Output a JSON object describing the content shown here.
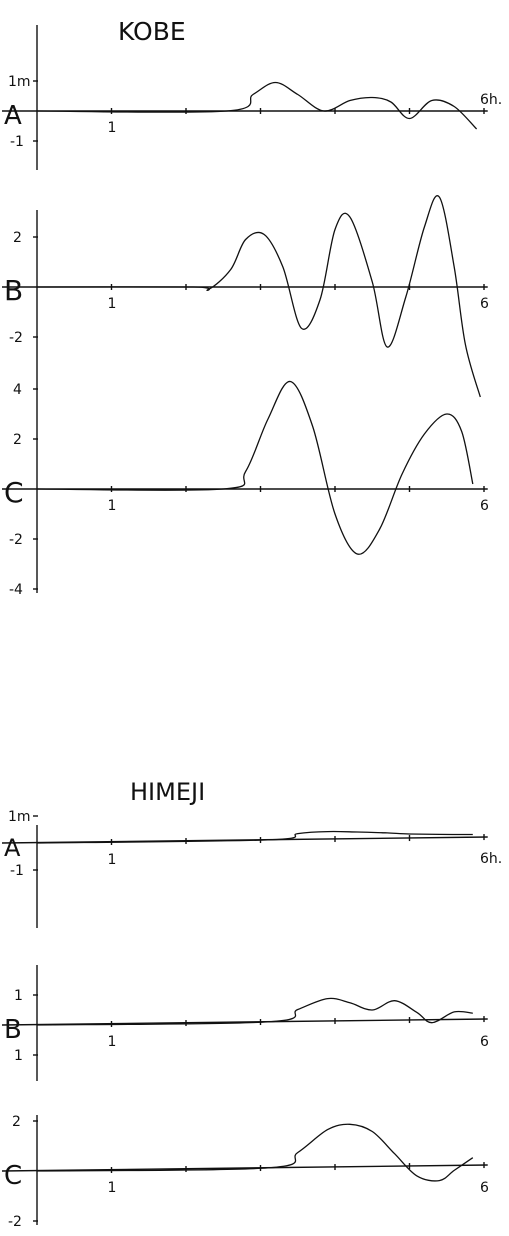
{
  "chart_data": [
    {
      "type": "line",
      "site": "KOBE",
      "panel": "A",
      "x_ticks": [
        "1"
      ],
      "x_end_label": "6h.",
      "y_tick_labels": [
        "1m",
        "-1"
      ],
      "ylim": [
        -1.8,
        2.0
      ],
      "series": [
        {
          "x": [
            0,
            2.55,
            2.9,
            3.2,
            3.5,
            3.85,
            4.2,
            4.5,
            4.75,
            5.0,
            5.3,
            5.6,
            5.9
          ],
          "y": [
            0,
            0,
            0.55,
            0.95,
            0.55,
            0,
            0.35,
            0.45,
            0.3,
            -0.25,
            0.35,
            0.15,
            -0.6
          ]
        }
      ]
    },
    {
      "type": "line",
      "site": "KOBE",
      "panel": "B",
      "x_ticks": [
        "1",
        "6"
      ],
      "y_tick_labels": [
        "2",
        "-2"
      ],
      "ylim": [
        -3.5,
        3.2
      ],
      "series": [
        {
          "x": [
            0,
            2.1,
            2.3,
            2.6,
            2.8,
            3.05,
            3.3,
            3.55,
            3.8,
            4.0,
            4.2,
            4.5,
            4.7,
            4.95,
            5.2,
            5.4,
            5.6,
            5.75,
            5.95
          ],
          "y": [
            0,
            0,
            -0.1,
            0.7,
            1.9,
            2.1,
            0.8,
            -1.65,
            -0.5,
            2.3,
            2.8,
            0.2,
            -2.4,
            -0.4,
            2.4,
            3.6,
            0.8,
            -2.3,
            -4.4
          ]
        }
      ]
    },
    {
      "type": "line",
      "site": "KOBE",
      "panel": "C",
      "x_ticks": [
        "1",
        "6"
      ],
      "y_tick_labels": [
        "4",
        "2",
        "-2",
        "-4"
      ],
      "ylim": [
        -4.2,
        4.6
      ],
      "series": [
        {
          "x": [
            0,
            2.5,
            2.8,
            3.1,
            3.4,
            3.7,
            4.0,
            4.3,
            4.6,
            4.9,
            5.2,
            5.5,
            5.7,
            5.85
          ],
          "y": [
            0,
            0,
            0.7,
            2.8,
            4.3,
            2.5,
            -1.0,
            -2.6,
            -1.6,
            0.6,
            2.2,
            3.0,
            2.3,
            0.2
          ]
        }
      ]
    },
    {
      "type": "line",
      "site": "HIMEJI",
      "panel": "A",
      "x_ticks": [
        "1"
      ],
      "x_end_label": "6h.",
      "y_tick_labels": [
        "1m",
        "-1"
      ],
      "ylim": [
        -2.3,
        2.0
      ],
      "series": [
        {
          "x": [
            0,
            3.1,
            3.5,
            3.9,
            4.3,
            4.7,
            5.0,
            5.4,
            5.85
          ],
          "y": [
            0,
            0,
            0.22,
            0.28,
            0.25,
            0.2,
            0.15,
            0.12,
            0.1
          ]
        }
      ]
    },
    {
      "type": "line",
      "site": "HIMEJI",
      "panel": "B",
      "x_ticks": [
        "1",
        "6"
      ],
      "y_tick_labels": [
        "1",
        "1"
      ],
      "ylim": [
        -2.3,
        1.9
      ],
      "series": [
        {
          "x": [
            0,
            3.1,
            3.5,
            3.9,
            4.2,
            4.5,
            4.8,
            5.1,
            5.3,
            5.6,
            5.85
          ],
          "y": [
            0,
            0,
            0.4,
            0.75,
            0.6,
            0.35,
            0.65,
            0.25,
            -0.1,
            0.25,
            0.2
          ]
        }
      ]
    },
    {
      "type": "line",
      "site": "HIMEJI",
      "panel": "C",
      "x_ticks": [
        "1",
        "6"
      ],
      "y_tick_labels": [
        "2",
        "-2"
      ],
      "ylim": [
        -2.4,
        2.4
      ],
      "series": [
        {
          "x": [
            0,
            3.1,
            3.5,
            3.9,
            4.2,
            4.5,
            4.8,
            5.1,
            5.4,
            5.6,
            5.85
          ],
          "y": [
            0,
            0,
            0.6,
            1.5,
            1.7,
            1.4,
            0.5,
            -0.4,
            -0.6,
            -0.2,
            0.3
          ]
        }
      ]
    }
  ],
  "titles": {
    "kobe": "KOBE",
    "himeji": "HIMEJI"
  }
}
